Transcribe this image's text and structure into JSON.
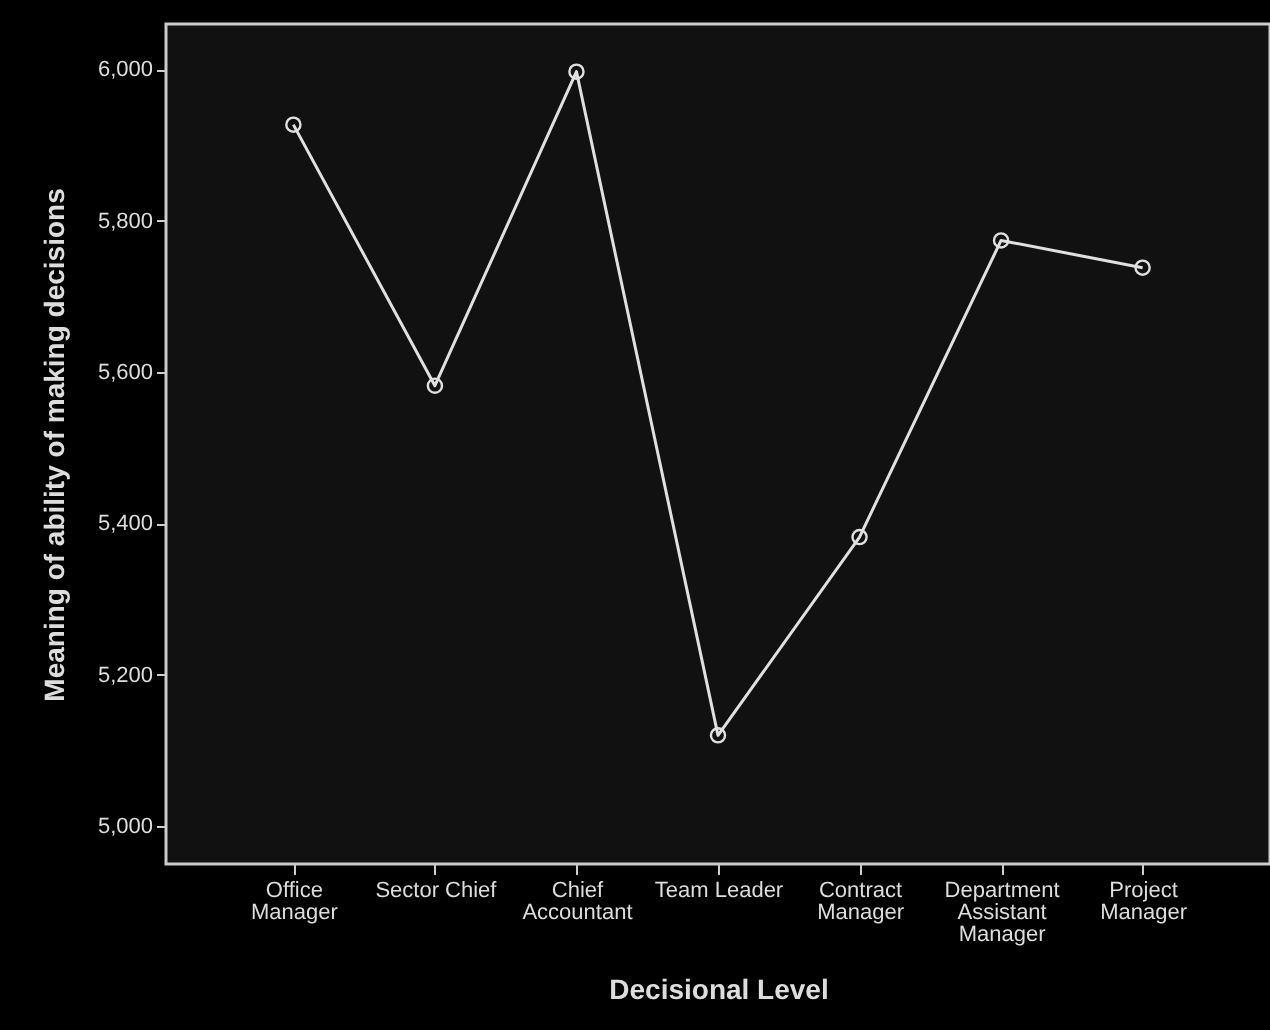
{
  "chart_data": {
    "type": "line",
    "xlabel": "Decisional Level",
    "ylabel": "Meaning of ability of making decisions",
    "categories": [
      "Office Manager",
      "Sector Chief",
      "Chief Accountant",
      "Team Leader",
      "Contract Manager",
      "Department Assistant Manager",
      "Project Manager"
    ],
    "series": [
      {
        "color": "#e0e0e0",
        "values": [
          5927,
          5582,
          5997,
          5120,
          5382,
          5774,
          5738
        ]
      }
    ],
    "ylim": [
      4950,
      6060
    ],
    "yticks": [
      {
        "value": 5000,
        "label": "5,000"
      },
      {
        "value": 5200,
        "label": "5,200"
      },
      {
        "value": 5400,
        "label": "5,400"
      },
      {
        "value": 5600,
        "label": "5,600"
      },
      {
        "value": 5800,
        "label": "5,800"
      },
      {
        "value": 6000,
        "label": "6,000"
      }
    ],
    "marker": "circle",
    "line_style": "solid",
    "grid": false
  }
}
